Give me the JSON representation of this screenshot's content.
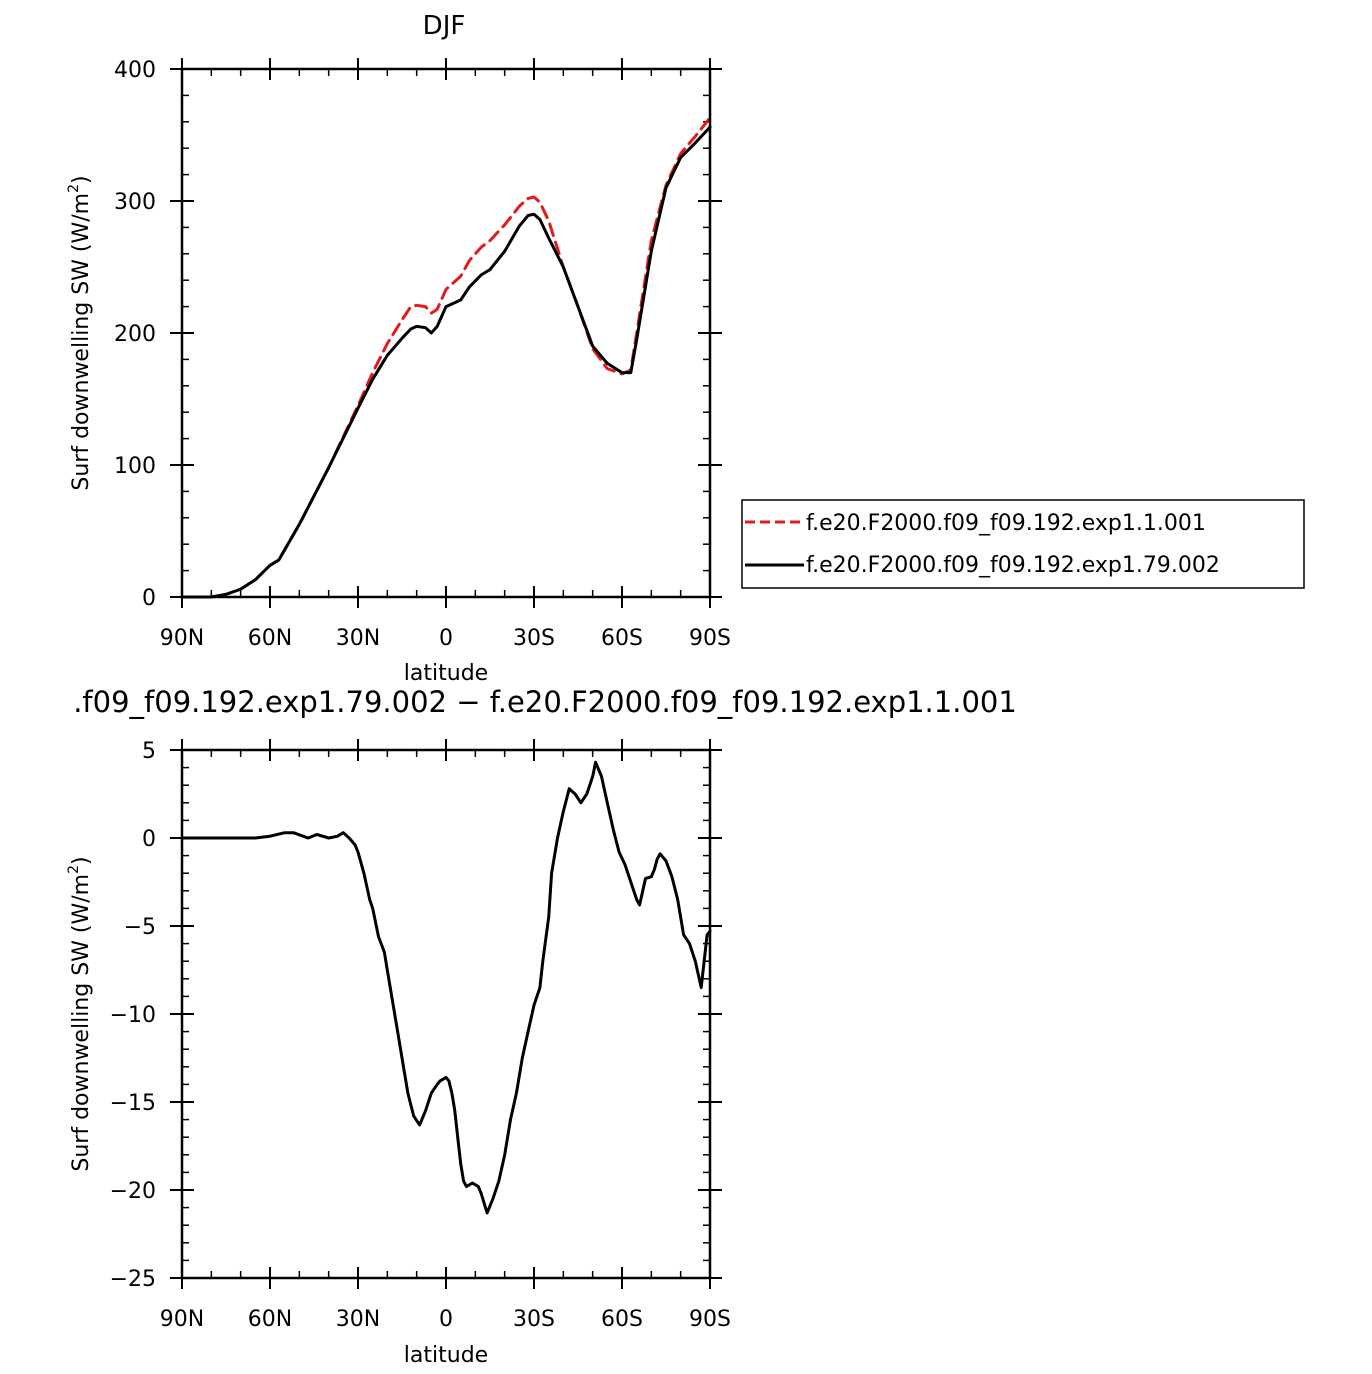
{
  "chart_data": [
    {
      "type": "line",
      "title": "DJF",
      "xlabel": "latitude",
      "ylabel": "Surf downwelling SW (W/m²)",
      "ylabel_main": "Surf downwelling SW (W/m",
      "ylabel_sup": "2",
      "ylabel_close": ")",
      "xlim": [
        90,
        -90
      ],
      "ylim": [
        0,
        400
      ],
      "xticks": [
        {
          "value": 90,
          "label": "90N"
        },
        {
          "value": 60,
          "label": "60N"
        },
        {
          "value": 30,
          "label": "30N"
        },
        {
          "value": 0,
          "label": "0"
        },
        {
          "value": -30,
          "label": "30S"
        },
        {
          "value": -60,
          "label": "60S"
        },
        {
          "value": -90,
          "label": "90S"
        }
      ],
      "yticks": [
        {
          "value": 0,
          "label": "0"
        },
        {
          "value": 100,
          "label": "100"
        },
        {
          "value": 200,
          "label": "200"
        },
        {
          "value": 300,
          "label": "300"
        },
        {
          "value": 400,
          "label": "400"
        }
      ],
      "legend_position": "right",
      "series": [
        {
          "name": "f.e20.F2000.f09_f09.192.exp1.1.001",
          "color": "#e41a1c",
          "dash": "dashed",
          "x": [
            90,
            80,
            75,
            70,
            65,
            60,
            57,
            50,
            40,
            30,
            25,
            20,
            15,
            12,
            10,
            7,
            5,
            3,
            0,
            -5,
            -8,
            -12,
            -15,
            -20,
            -25,
            -28,
            -30,
            -32,
            -35,
            -40,
            -45,
            -50,
            -55,
            -60,
            -63,
            -65,
            -70,
            -75,
            -80,
            -85,
            -90
          ],
          "y": [
            0,
            0,
            2,
            6,
            13,
            24,
            28,
            55,
            98,
            145,
            170,
            192,
            210,
            220,
            221,
            220,
            215,
            218,
            233,
            243,
            255,
            265,
            270,
            282,
            296,
            302,
            303,
            299,
            285,
            250,
            220,
            188,
            173,
            169,
            172,
            200,
            270,
            312,
            336,
            349,
            363
          ]
        },
        {
          "name": "f.e20.F2000.f09_f09.192.exp1.79.002",
          "color": "#000000",
          "dash": "solid",
          "x": [
            90,
            80,
            75,
            70,
            65,
            60,
            57,
            50,
            40,
            30,
            25,
            20,
            15,
            12,
            10,
            7,
            5,
            3,
            0,
            -5,
            -8,
            -12,
            -15,
            -20,
            -25,
            -28,
            -30,
            -32,
            -35,
            -40,
            -45,
            -50,
            -55,
            -60,
            -63,
            -65,
            -70,
            -75,
            -80,
            -85,
            -90
          ],
          "y": [
            0,
            0,
            2,
            6,
            13,
            24,
            28,
            55,
            98,
            143,
            165,
            183,
            196,
            203,
            205,
            204,
            200,
            205,
            220,
            225,
            235,
            244,
            248,
            262,
            281,
            289,
            290,
            286,
            272,
            250,
            220,
            190,
            177,
            170,
            170,
            195,
            262,
            310,
            333,
            344,
            356
          ]
        }
      ]
    },
    {
      "type": "line",
      "title": ".f09_f09.192.exp1.79.002 − f.e20.F2000.f09_f09.192.exp1.1.001",
      "xlabel": "latitude",
      "ylabel": "Surf downwelling SW (W/m²)",
      "ylabel_main": "Surf downwelling SW (W/m",
      "ylabel_sup": "2",
      "ylabel_close": ")",
      "xlim": [
        90,
        -90
      ],
      "ylim": [
        -25,
        5
      ],
      "xticks": [
        {
          "value": 90,
          "label": "90N"
        },
        {
          "value": 60,
          "label": "60N"
        },
        {
          "value": 30,
          "label": "30N"
        },
        {
          "value": 0,
          "label": "0"
        },
        {
          "value": -30,
          "label": "30S"
        },
        {
          "value": -60,
          "label": "60S"
        },
        {
          "value": -90,
          "label": "90S"
        }
      ],
      "yticks": [
        {
          "value": 5,
          "label": "5"
        },
        {
          "value": 0,
          "label": "0"
        },
        {
          "value": -5,
          "label": "−5"
        },
        {
          "value": -10,
          "label": "−10"
        },
        {
          "value": -15,
          "label": "−15"
        },
        {
          "value": -20,
          "label": "−20"
        },
        {
          "value": -25,
          "label": "−25"
        }
      ],
      "series": [
        {
          "color": "#000000",
          "dash": "solid",
          "x": [
            90,
            80,
            72,
            65,
            60,
            55,
            52,
            47,
            44,
            40,
            37,
            35,
            33,
            31,
            30,
            28,
            26,
            25,
            23,
            21,
            20,
            18,
            16,
            15,
            13,
            11,
            9,
            7,
            5,
            3,
            2,
            0,
            -1,
            -2,
            -3,
            -4,
            -5,
            -6,
            -7,
            -9,
            -11,
            -12,
            -14,
            -16,
            -18,
            -20,
            -22,
            -24,
            -26,
            -28,
            -30,
            -32,
            -33,
            -35,
            -36,
            -38,
            -40,
            -42,
            -44,
            -46,
            -48,
            -50,
            -51,
            -53,
            -55,
            -57,
            -59,
            -61,
            -63,
            -65,
            -66,
            -68,
            -70,
            -71,
            -72,
            -73,
            -75,
            -77,
            -79,
            -81,
            -83,
            -85,
            -87,
            -89,
            -90
          ],
          "y": [
            0,
            0,
            0,
            0,
            0.1,
            0.3,
            0.3,
            0,
            0.2,
            0,
            0.1,
            0.3,
            0,
            -0.4,
            -0.8,
            -2,
            -3.5,
            -4,
            -5.6,
            -6.5,
            -7.5,
            -9.5,
            -11.5,
            -12.5,
            -14.5,
            -15.8,
            -16.3,
            -15.5,
            -14.5,
            -14,
            -13.8,
            -13.6,
            -13.8,
            -14.5,
            -15.5,
            -17,
            -18.5,
            -19.5,
            -19.8,
            -19.6,
            -19.8,
            -20.2,
            -21.3,
            -20.5,
            -19.5,
            -18,
            -16,
            -14.5,
            -12.5,
            -11,
            -9.5,
            -8.5,
            -7,
            -4.5,
            -2,
            0,
            1.5,
            2.8,
            2.5,
            2.0,
            2.5,
            3.5,
            4.3,
            3.5,
            2,
            0.5,
            -0.8,
            -1.5,
            -2.5,
            -3.5,
            -3.8,
            -2.3,
            -2.2,
            -1.8,
            -1.2,
            -0.9,
            -1.3,
            -2.2,
            -3.5,
            -5.5,
            -6,
            -7,
            -8.5,
            -5.5,
            -5.3
          ]
        }
      ]
    }
  ]
}
